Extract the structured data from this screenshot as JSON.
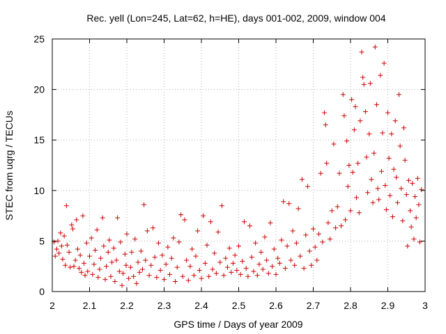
{
  "chart_data": {
    "type": "scatter",
    "title": "Rec. yell (Lon=245, Lat=62, h=HE), days 001-002, 2009, window 004",
    "xlabel": "GPS time / Days of year 2009",
    "ylabel": "STEC from uqrg / TECUs",
    "xlim": [
      2,
      3
    ],
    "ylim": [
      0,
      25
    ],
    "xticks": [
      2,
      2.1,
      2.2,
      2.3,
      2.4,
      2.5,
      2.6,
      2.7,
      2.8,
      2.9,
      3
    ],
    "xtick_labels": [
      "2",
      "2.1",
      "2.2",
      "2.3",
      "2.4",
      "2.5",
      "2.6",
      "2.7",
      "2.8",
      "2.9",
      "3"
    ],
    "yticks": [
      0,
      5,
      10,
      15,
      20,
      25
    ],
    "ytick_labels": [
      "0",
      "5",
      "10",
      "15",
      "20",
      "25"
    ],
    "grid": true,
    "marker": "plus",
    "color": "#cc0000",
    "series": [
      {
        "points": [
          [
            2.005,
            4.9
          ],
          [
            2.008,
            3.5
          ],
          [
            2.012,
            4.2
          ],
          [
            2.015,
            5.0
          ],
          [
            2.018,
            3.8
          ],
          [
            2.022,
            5.8
          ],
          [
            2.025,
            4.5
          ],
          [
            2.028,
            3.2
          ],
          [
            2.032,
            5.5
          ],
          [
            2.035,
            2.6
          ],
          [
            2.038,
            8.5
          ],
          [
            2.04,
            4.6
          ],
          [
            2.045,
            3.9
          ],
          [
            2.048,
            2.4
          ],
          [
            2.052,
            6.6
          ],
          [
            2.055,
            6.2
          ],
          [
            2.058,
            2.5
          ],
          [
            2.062,
            3.1
          ],
          [
            2.065,
            7.1
          ],
          [
            2.068,
            4.2
          ],
          [
            2.072,
            2.3
          ],
          [
            2.075,
            3.6
          ],
          [
            2.078,
            1.9
          ],
          [
            2.082,
            7.5
          ],
          [
            2.085,
            2.8
          ],
          [
            2.088,
            1.6
          ],
          [
            2.092,
            4.8
          ],
          [
            2.095,
            2.0
          ],
          [
            2.1,
            3.5
          ],
          [
            2.105,
            5.3
          ],
          [
            2.108,
            1.7
          ],
          [
            2.112,
            2.7
          ],
          [
            2.115,
            4.1
          ],
          [
            2.12,
            6.1
          ],
          [
            2.123,
            1.4
          ],
          [
            2.127,
            2.2
          ],
          [
            2.13,
            3.3
          ],
          [
            2.135,
            7.3
          ],
          [
            2.138,
            4.5
          ],
          [
            2.142,
            1.2
          ],
          [
            2.145,
            2.5
          ],
          [
            2.15,
            3.9
          ],
          [
            2.153,
            5.1
          ],
          [
            2.157,
            1.5
          ],
          [
            2.16,
            2.9
          ],
          [
            2.165,
            4.3
          ],
          [
            2.168,
            1.0
          ],
          [
            2.172,
            3.1
          ],
          [
            2.175,
            7.3
          ],
          [
            2.18,
            2.0
          ],
          [
            2.183,
            4.9
          ],
          [
            2.187,
            0.6
          ],
          [
            2.19,
            1.8
          ],
          [
            2.195,
            3.7
          ],
          [
            2.198,
            2.6
          ],
          [
            2.2,
            5.7
          ],
          [
            2.205,
            1.3
          ],
          [
            2.21,
            2.4
          ],
          [
            2.213,
            3.9
          ],
          [
            2.218,
            1.5
          ],
          [
            2.222,
            5.2
          ],
          [
            2.226,
            0.8
          ],
          [
            2.23,
            2.9
          ],
          [
            2.234,
            1.9
          ],
          [
            2.238,
            4.0
          ],
          [
            2.242,
            2.2
          ],
          [
            2.246,
            8.6
          ],
          [
            2.25,
            3.1
          ],
          [
            2.255,
            6.0
          ],
          [
            2.26,
            1.6
          ],
          [
            2.265,
            2.6
          ],
          [
            2.27,
            6.3
          ],
          [
            2.275,
            3.4
          ],
          [
            2.28,
            1.4
          ],
          [
            2.285,
            4.8
          ],
          [
            2.29,
            2.1
          ],
          [
            2.295,
            3.6
          ],
          [
            2.3,
            1.2
          ],
          [
            2.305,
            2.7
          ],
          [
            2.31,
            4.4
          ],
          [
            2.315,
            1.7
          ],
          [
            2.32,
            3.3
          ],
          [
            2.325,
            5.3
          ],
          [
            2.33,
            1.0
          ],
          [
            2.335,
            2.4
          ],
          [
            2.34,
            4.9
          ],
          [
            2.345,
            7.6
          ],
          [
            2.35,
            1.5
          ],
          [
            2.355,
            7.1
          ],
          [
            2.36,
            3.1
          ],
          [
            2.365,
            1.1
          ],
          [
            2.37,
            2.5
          ],
          [
            2.375,
            4.2
          ],
          [
            2.38,
            1.6
          ],
          [
            2.385,
            3.5
          ],
          [
            2.39,
            6.0
          ],
          [
            2.395,
            2.1
          ],
          [
            2.4,
            1.3
          ],
          [
            2.405,
            7.5
          ],
          [
            2.41,
            2.8
          ],
          [
            2.415,
            4.6
          ],
          [
            2.42,
            1.5
          ],
          [
            2.425,
            6.9
          ],
          [
            2.43,
            2.2
          ],
          [
            2.435,
            3.8
          ],
          [
            2.44,
            1.8
          ],
          [
            2.445,
            5.9
          ],
          [
            2.45,
            2.9
          ],
          [
            2.455,
            8.5
          ],
          [
            2.46,
            1.6
          ],
          [
            2.465,
            3.3
          ],
          [
            2.47,
            2.4
          ],
          [
            2.475,
            4.3
          ],
          [
            2.48,
            1.9
          ],
          [
            2.485,
            2.8
          ],
          [
            2.49,
            3.6
          ],
          [
            2.495,
            2.1
          ],
          [
            2.5,
            4.5
          ],
          [
            2.505,
            1.7
          ],
          [
            2.51,
            3.0
          ],
          [
            2.515,
            6.9
          ],
          [
            2.52,
            2.3
          ],
          [
            2.525,
            1.5
          ],
          [
            2.53,
            6.5
          ],
          [
            2.535,
            3.4
          ],
          [
            2.54,
            2.0
          ],
          [
            2.545,
            4.8
          ],
          [
            2.55,
            1.6
          ],
          [
            2.555,
            2.7
          ],
          [
            2.56,
            3.9
          ],
          [
            2.565,
            2.2
          ],
          [
            2.57,
            5.4
          ],
          [
            2.575,
            3.1
          ],
          [
            2.58,
            1.8
          ],
          [
            2.585,
            6.8
          ],
          [
            2.59,
            2.5
          ],
          [
            2.595,
            4.2
          ],
          [
            2.6,
            1.7
          ],
          [
            2.605,
            3.3
          ],
          [
            2.61,
            2.8
          ],
          [
            2.615,
            5.1
          ],
          [
            2.62,
            8.9
          ],
          [
            2.625,
            2.3
          ],
          [
            2.63,
            4.5
          ],
          [
            2.635,
            8.7
          ],
          [
            2.64,
            3.1
          ],
          [
            2.645,
            6.0
          ],
          [
            2.65,
            2.6
          ],
          [
            2.655,
            4.8
          ],
          [
            2.66,
            8.2
          ],
          [
            2.665,
            3.5
          ],
          [
            2.67,
            11.1
          ],
          [
            2.675,
            2.3
          ],
          [
            2.68,
            5.6
          ],
          [
            2.685,
            10.4
          ],
          [
            2.69,
            4.0
          ],
          [
            2.695,
            2.6
          ],
          [
            2.7,
            6.2
          ],
          [
            2.705,
            4.4
          ],
          [
            2.71,
            3.1
          ],
          [
            2.715,
            5.7
          ],
          [
            2.72,
            11.7
          ],
          [
            2.725,
            4.9
          ],
          [
            2.73,
            17.7
          ],
          [
            2.733,
            16.5
          ],
          [
            2.736,
            12.7
          ],
          [
            2.74,
            6.8
          ],
          [
            2.745,
            5.2
          ],
          [
            2.75,
            8.0
          ],
          [
            2.755,
            14.6
          ],
          [
            2.76,
            6.3
          ],
          [
            2.765,
            8.4
          ],
          [
            2.77,
            11.7
          ],
          [
            2.775,
            6.5
          ],
          [
            2.78,
            19.5
          ],
          [
            2.783,
            17.4
          ],
          [
            2.786,
            7.1
          ],
          [
            2.79,
            14.9
          ],
          [
            2.793,
            10.4
          ],
          [
            2.796,
            12.5
          ],
          [
            2.8,
            8.0
          ],
          [
            2.803,
            19.0
          ],
          [
            2.806,
            11.8
          ],
          [
            2.81,
            16.0
          ],
          [
            2.813,
            18.3
          ],
          [
            2.816,
            9.3
          ],
          [
            2.82,
            12.7
          ],
          [
            2.823,
            7.8
          ],
          [
            2.826,
            16.9
          ],
          [
            2.83,
            23.7
          ],
          [
            2.833,
            21.2
          ],
          [
            2.836,
            20.5
          ],
          [
            2.84,
            17.8
          ],
          [
            2.843,
            13.3
          ],
          [
            2.846,
            9.8
          ],
          [
            2.85,
            15.6
          ],
          [
            2.853,
            20.6
          ],
          [
            2.856,
            11.1
          ],
          [
            2.86,
            8.8
          ],
          [
            2.863,
            13.7
          ],
          [
            2.866,
            24.2
          ],
          [
            2.87,
            18.5
          ],
          [
            2.873,
            10.2
          ],
          [
            2.876,
            9.1
          ],
          [
            2.88,
            21.4
          ],
          [
            2.883,
            11.9
          ],
          [
            2.886,
            15.7
          ],
          [
            2.89,
            22.6
          ],
          [
            2.893,
            10.5
          ],
          [
            2.896,
            8.1
          ],
          [
            2.9,
            17.7
          ],
          [
            2.903,
            13.2
          ],
          [
            2.906,
            9.5
          ],
          [
            2.91,
            15.6
          ],
          [
            2.913,
            7.4
          ],
          [
            2.916,
            12.1
          ],
          [
            2.92,
            16.9
          ],
          [
            2.923,
            11.3
          ],
          [
            2.926,
            8.8
          ],
          [
            2.93,
            19.5
          ],
          [
            2.933,
            14.4
          ],
          [
            2.936,
            10.2
          ],
          [
            2.94,
            7.0
          ],
          [
            2.943,
            16.2
          ],
          [
            2.946,
            13.0
          ],
          [
            2.95,
            9.6
          ],
          [
            2.953,
            4.5
          ],
          [
            2.956,
            11.0
          ],
          [
            2.96,
            8.0
          ],
          [
            2.963,
            6.4
          ],
          [
            2.966,
            10.7
          ],
          [
            2.97,
            5.2
          ],
          [
            2.973,
            9.4
          ],
          [
            2.976,
            7.3
          ],
          [
            2.98,
            11.2
          ],
          [
            2.983,
            8.6
          ],
          [
            2.986,
            4.9
          ],
          [
            2.99,
            10.1
          ]
        ]
      }
    ]
  }
}
